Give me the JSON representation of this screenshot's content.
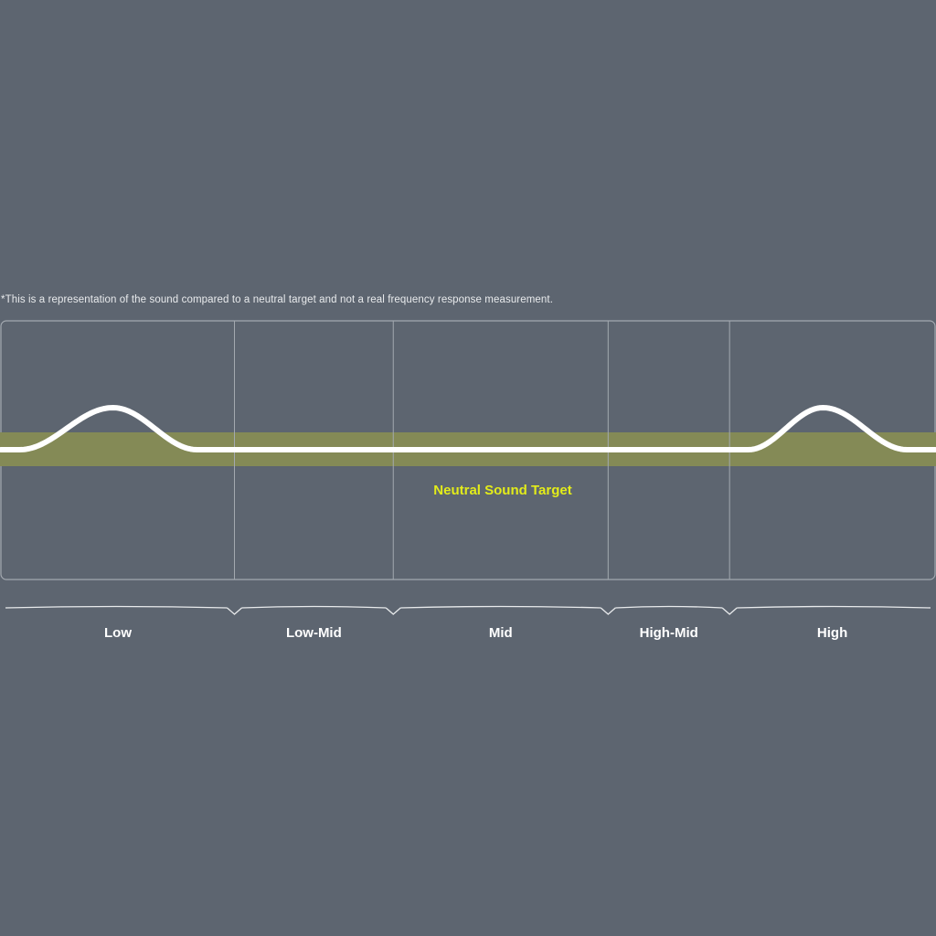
{
  "disclaimer": "*This is a representation of the sound compared to a neutral target and not a real frequency response measurement.",
  "chart_data": {
    "type": "line",
    "title": "",
    "xlabel": "",
    "ylabel": "",
    "grid": true,
    "target_band_label": "Neutral Sound Target",
    "bands": [
      "Low",
      "Low-Mid",
      "Mid",
      "High-Mid",
      "High"
    ],
    "band_widths": [
      0.25,
      0.17,
      0.23,
      0.13,
      0.22
    ],
    "curve": {
      "x": [
        0,
        0.02,
        0.12,
        0.21,
        0.25,
        0.42,
        0.65,
        0.78,
        0.8,
        0.88,
        0.97,
        1.0
      ],
      "y": [
        0,
        0,
        1,
        0,
        0,
        0,
        0,
        0,
        0,
        1,
        0,
        0
      ]
    },
    "colors": {
      "background": "#5d6570",
      "band": "#848a56",
      "curve": "#ffffff",
      "target_label": "#e3ec1a",
      "grid": "#a3a9b0"
    }
  }
}
